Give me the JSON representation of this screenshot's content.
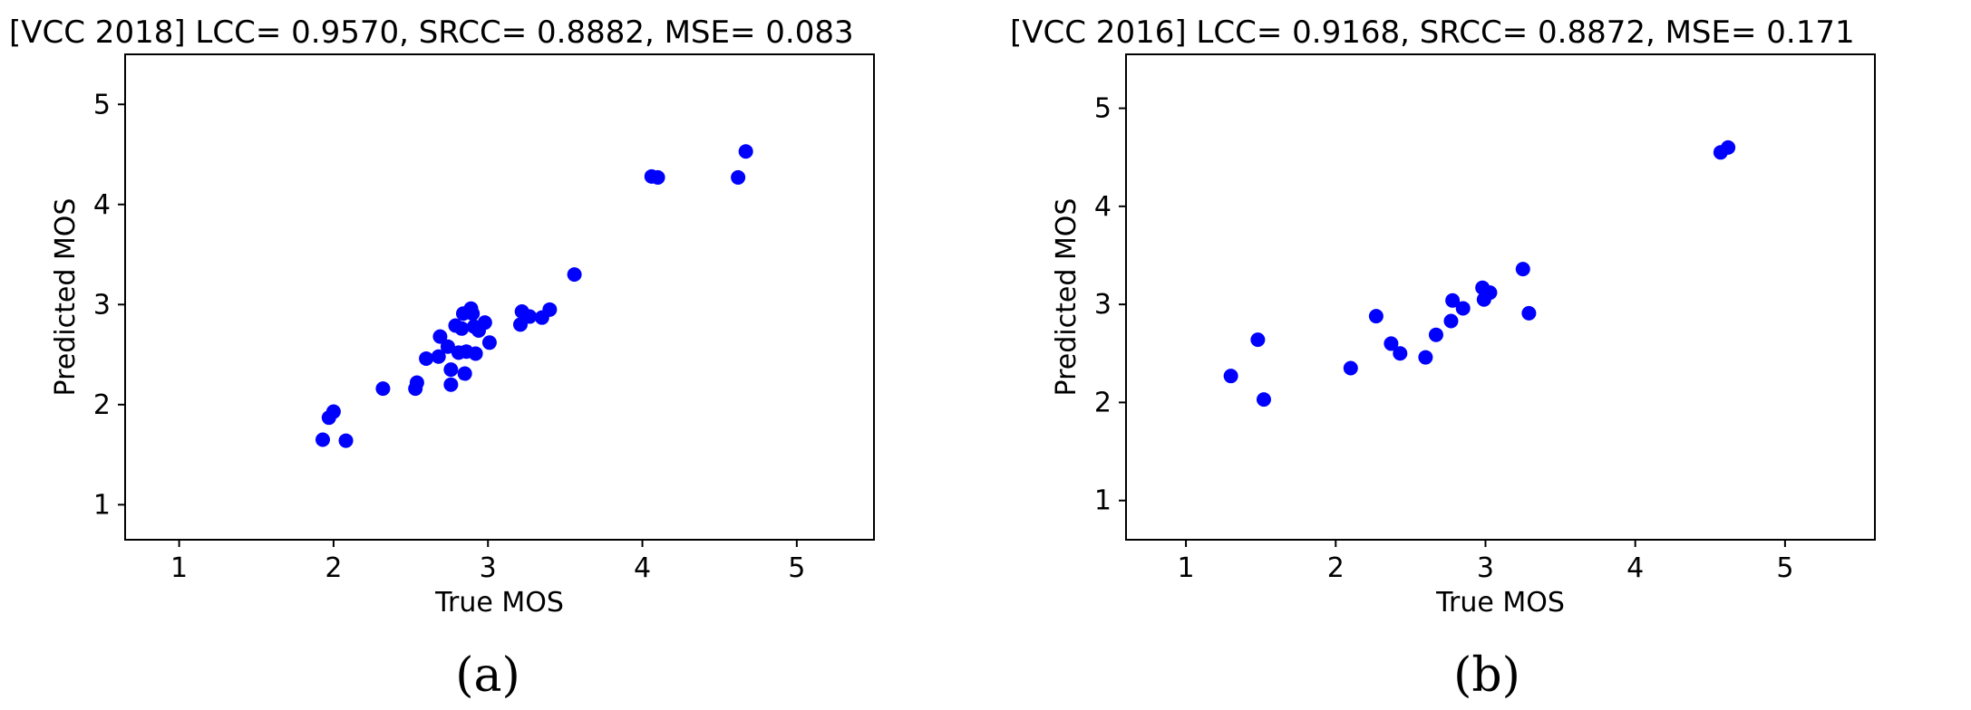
{
  "chart_data": [
    {
      "type": "scatter",
      "title": "[VCC 2018] LCC= 0.9570, SRCC= 0.8882, MSE= 0.083",
      "xlabel": "True MOS",
      "ylabel": "Predicted MOS",
      "caption": "(a)",
      "xlim": [
        0.65,
        5.5
      ],
      "ylim": [
        0.65,
        5.5
      ],
      "xticks": [
        1,
        2,
        3,
        4,
        5
      ],
      "yticks": [
        1,
        2,
        3,
        4,
        5
      ],
      "xtick_labels": [
        "1",
        "2",
        "3",
        "4",
        "5"
      ],
      "ytick_labels": [
        "1",
        "2",
        "3",
        "4",
        "5"
      ],
      "color": "#0000ff",
      "points": [
        {
          "x": 1.93,
          "y": 1.65
        },
        {
          "x": 1.97,
          "y": 1.87
        },
        {
          "x": 2.0,
          "y": 1.93
        },
        {
          "x": 2.08,
          "y": 1.64
        },
        {
          "x": 2.32,
          "y": 2.16
        },
        {
          "x": 2.53,
          "y": 2.16
        },
        {
          "x": 2.54,
          "y": 2.22
        },
        {
          "x": 2.6,
          "y": 2.46
        },
        {
          "x": 2.68,
          "y": 2.48
        },
        {
          "x": 2.69,
          "y": 2.68
        },
        {
          "x": 2.74,
          "y": 2.58
        },
        {
          "x": 2.76,
          "y": 2.2
        },
        {
          "x": 2.76,
          "y": 2.35
        },
        {
          "x": 2.79,
          "y": 2.79
        },
        {
          "x": 2.81,
          "y": 2.52
        },
        {
          "x": 2.83,
          "y": 2.76
        },
        {
          "x": 2.84,
          "y": 2.91
        },
        {
          "x": 2.85,
          "y": 2.31
        },
        {
          "x": 2.86,
          "y": 2.53
        },
        {
          "x": 2.89,
          "y": 2.96
        },
        {
          "x": 2.9,
          "y": 2.91
        },
        {
          "x": 2.91,
          "y": 2.78
        },
        {
          "x": 2.92,
          "y": 2.51
        },
        {
          "x": 2.94,
          "y": 2.74
        },
        {
          "x": 2.98,
          "y": 2.82
        },
        {
          "x": 3.01,
          "y": 2.62
        },
        {
          "x": 3.21,
          "y": 2.8
        },
        {
          "x": 3.22,
          "y": 2.93
        },
        {
          "x": 3.27,
          "y": 2.88
        },
        {
          "x": 3.35,
          "y": 2.87
        },
        {
          "x": 3.4,
          "y": 2.95
        },
        {
          "x": 3.56,
          "y": 3.3
        },
        {
          "x": 4.06,
          "y": 4.28
        },
        {
          "x": 4.1,
          "y": 4.27
        },
        {
          "x": 4.62,
          "y": 4.27
        },
        {
          "x": 4.67,
          "y": 4.53
        }
      ]
    },
    {
      "type": "scatter",
      "title": "[VCC 2016] LCC= 0.9168, SRCC= 0.8872, MSE= 0.171",
      "xlabel": "True MOS",
      "ylabel": "Predicted MOS",
      "caption": "(b)",
      "xlim": [
        0.6,
        5.6
      ],
      "ylim": [
        0.6,
        5.55
      ],
      "xticks": [
        1,
        2,
        3,
        4,
        5
      ],
      "yticks": [
        1,
        2,
        3,
        4,
        5
      ],
      "xtick_labels": [
        "1",
        "2",
        "3",
        "4",
        "5"
      ],
      "ytick_labels": [
        "1",
        "2",
        "3",
        "4",
        "5"
      ],
      "color": "#0000ff",
      "points": [
        {
          "x": 1.3,
          "y": 2.27
        },
        {
          "x": 1.48,
          "y": 2.64
        },
        {
          "x": 1.52,
          "y": 2.03
        },
        {
          "x": 2.1,
          "y": 2.35
        },
        {
          "x": 2.27,
          "y": 2.88
        },
        {
          "x": 2.37,
          "y": 2.6
        },
        {
          "x": 2.43,
          "y": 2.5
        },
        {
          "x": 2.6,
          "y": 2.46
        },
        {
          "x": 2.67,
          "y": 2.69
        },
        {
          "x": 2.77,
          "y": 2.83
        },
        {
          "x": 2.78,
          "y": 3.04
        },
        {
          "x": 2.85,
          "y": 2.96
        },
        {
          "x": 2.98,
          "y": 3.17
        },
        {
          "x": 2.99,
          "y": 3.05
        },
        {
          "x": 3.03,
          "y": 3.12
        },
        {
          "x": 3.25,
          "y": 3.36
        },
        {
          "x": 3.29,
          "y": 2.91
        },
        {
          "x": 4.57,
          "y": 4.55
        },
        {
          "x": 4.62,
          "y": 4.6
        }
      ]
    }
  ]
}
